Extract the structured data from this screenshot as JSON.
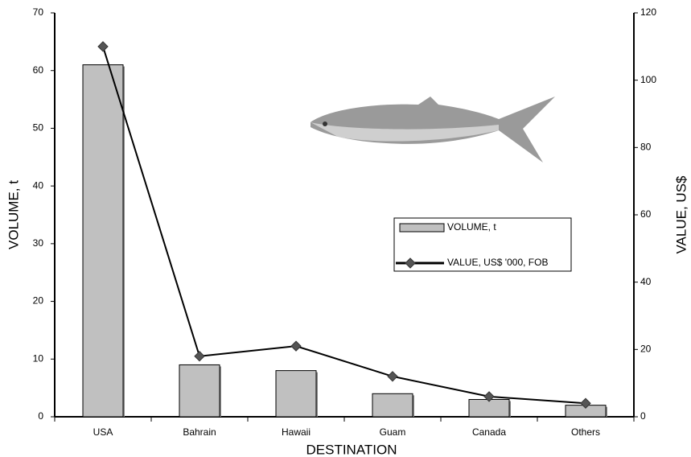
{
  "chart_data": {
    "type": "bar",
    "categories": [
      "USA",
      "Bahrain",
      "Hawaii",
      "Guam",
      "Canada",
      "Others"
    ],
    "series": [
      {
        "name": "VOLUME, t",
        "type": "bar",
        "color": "#c0c0c0",
        "values": [
          61,
          9,
          8,
          4,
          3,
          2
        ]
      },
      {
        "name": "VALUE, US$ '000, FOB",
        "type": "line",
        "axis": "y2",
        "color": "#000000",
        "values": [
          110,
          18,
          21,
          12,
          6,
          4
        ]
      }
    ],
    "x_label": "DESTINATION",
    "y_label": "VOLUME, t",
    "y2_label": "VALUE, US$",
    "ylim": [
      0,
      70
    ],
    "yticks": [
      0,
      10,
      20,
      30,
      40,
      50,
      60,
      70
    ],
    "y2lim": [
      0,
      120
    ],
    "y2ticks": [
      0,
      20,
      40,
      60,
      80,
      100,
      120
    ],
    "grid": false,
    "legend": "right"
  }
}
